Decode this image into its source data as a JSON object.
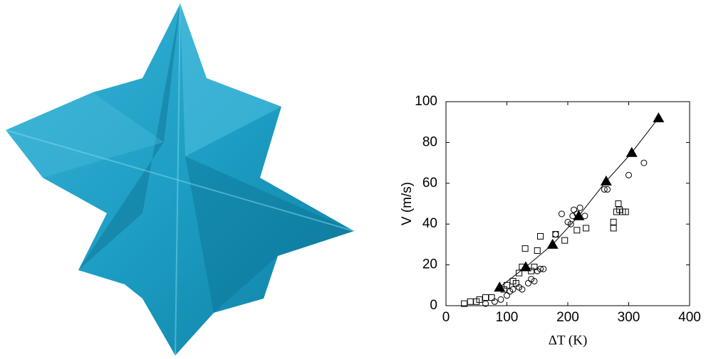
{
  "chart_data": {
    "type": "scatter",
    "x_label": "ΔT (K)",
    "y_label": "V (m/s)",
    "xlim": [
      0,
      400
    ],
    "xticks": [
      0,
      100,
      200,
      300,
      400
    ],
    "ylim": [
      0,
      100
    ],
    "yticks": [
      0,
      20,
      40,
      60,
      80,
      100
    ],
    "series": [
      {
        "marker": "circle",
        "color": "#000000",
        "line": false,
        "x": [
          65,
          80,
          90,
          100,
          105,
          110,
          120,
          125,
          135,
          140,
          145,
          150,
          155,
          160,
          180,
          190,
          200,
          205,
          208,
          210,
          215,
          220,
          228,
          260,
          265,
          300,
          325
        ],
        "values": [
          1,
          2,
          3,
          5,
          7,
          8,
          9,
          8,
          11,
          13,
          12,
          17,
          18,
          18,
          35,
          45,
          41,
          40,
          44,
          47,
          45,
          48,
          44,
          57,
          57,
          64,
          70
        ]
      },
      {
        "marker": "square",
        "color": "#000000",
        "line": false,
        "x": [
          30,
          40,
          50,
          55,
          65,
          75,
          95,
          100,
          110,
          115,
          120,
          125,
          130,
          140,
          145,
          150,
          155,
          180,
          195,
          215,
          230,
          275,
          280,
          283,
          285,
          290,
          295,
          275
        ],
        "values": [
          1,
          2,
          2,
          3,
          4,
          4,
          8,
          10,
          12,
          11,
          16,
          19,
          28,
          17,
          19,
          27,
          34,
          35,
          32,
          37,
          38,
          41,
          46,
          50,
          47,
          46,
          46,
          38
        ]
      },
      {
        "marker": "triangle",
        "color": "#000000",
        "line": true,
        "x": [
          88,
          131,
          175,
          218,
          263,
          305,
          349
        ],
        "values": [
          9,
          19,
          30,
          44,
          61,
          75,
          92
        ]
      }
    ]
  }
}
